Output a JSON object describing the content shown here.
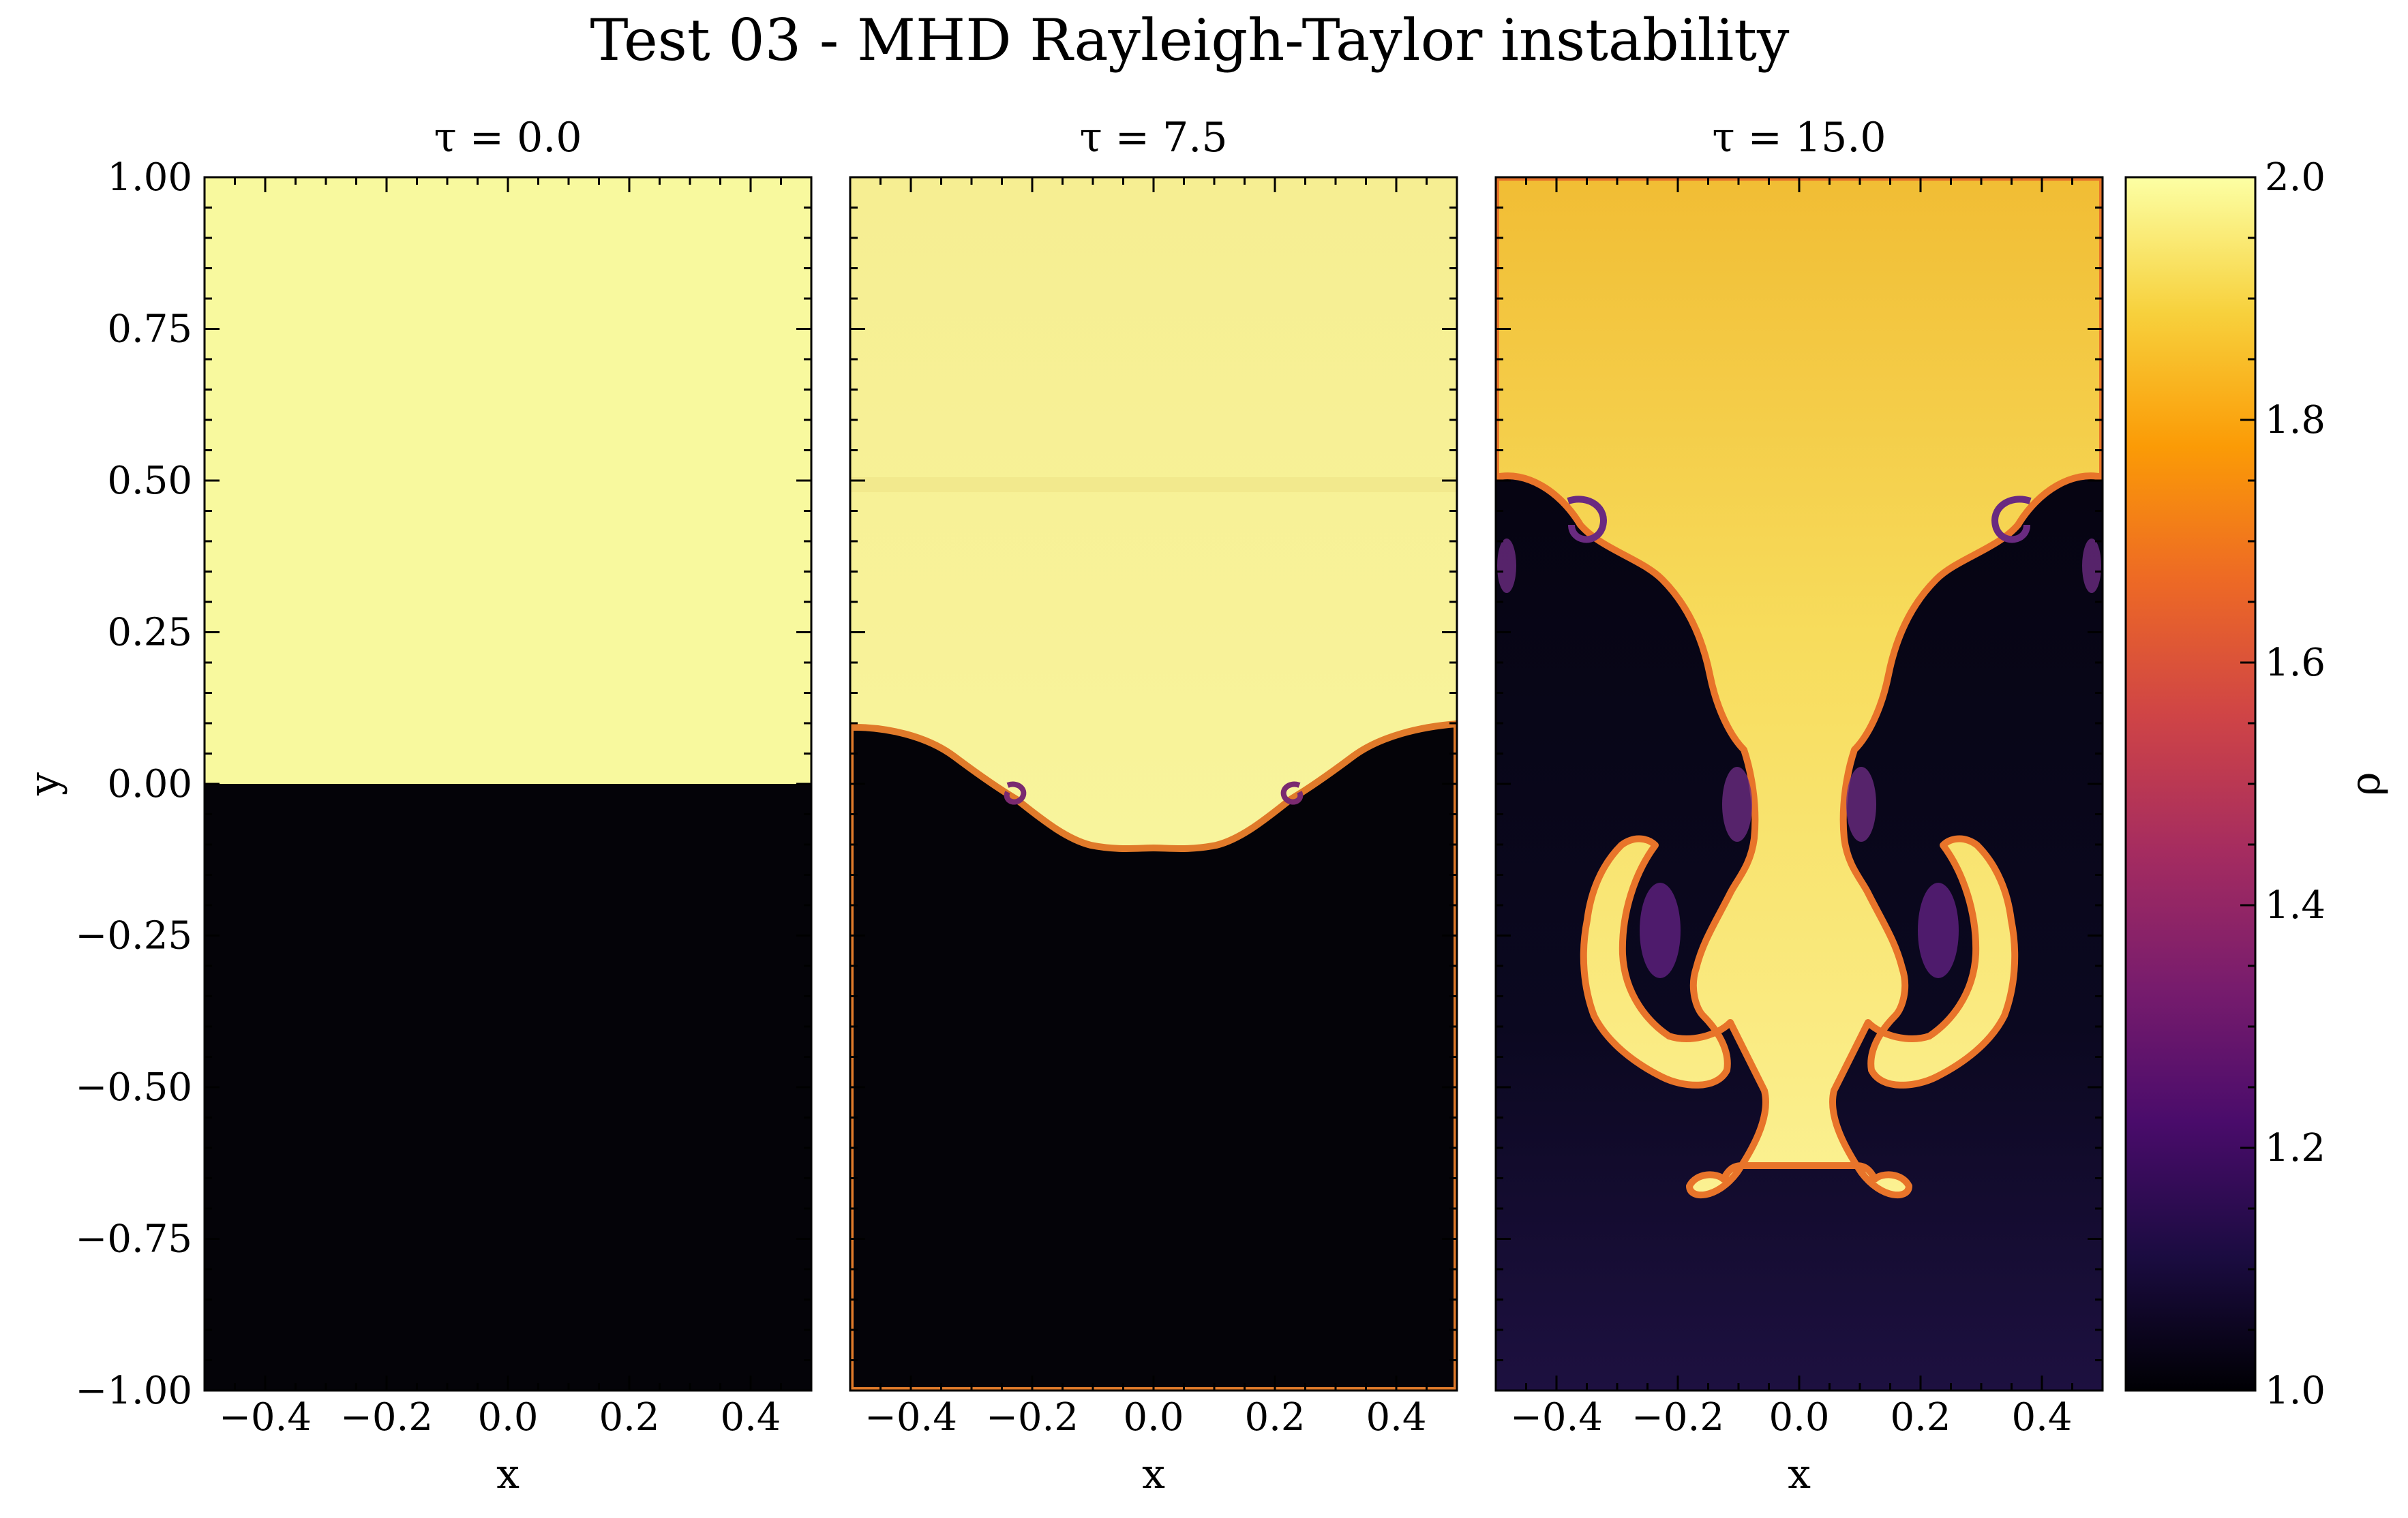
{
  "chart_data": {
    "type": "heatmap",
    "title": "Test 03 - MHD Rayleigh-Taylor instability",
    "panels": [
      {
        "title": "τ = 0.0",
        "time": 0.0
      },
      {
        "title": "τ = 7.5",
        "time": 7.5
      },
      {
        "title": "τ = 15.0",
        "time": 15.0
      }
    ],
    "xlabel": "x",
    "ylabel": "y",
    "xlim": [
      -0.5,
      0.5
    ],
    "ylim": [
      -1.0,
      1.0
    ],
    "xticks": [
      -0.4,
      -0.2,
      0.0,
      0.2,
      0.4
    ],
    "xtick_labels": [
      "−0.4",
      "−0.2",
      "0.0",
      "0.2",
      "0.4"
    ],
    "yticks": [
      1.0,
      0.75,
      0.5,
      0.25,
      0.0,
      -0.25,
      -0.5,
      -0.75,
      -1.0
    ],
    "ytick_labels": [
      "1.00",
      "0.75",
      "0.50",
      "0.25",
      "0.00",
      "−0.25",
      "−0.50",
      "−0.75",
      "−1.00"
    ],
    "colorbar": {
      "label": "ρ",
      "range": [
        1.0,
        2.0
      ],
      "ticks": [
        2.0,
        1.8,
        1.6,
        1.4,
        1.2,
        1.0
      ],
      "tick_labels": [
        "2.0",
        "1.8",
        "1.6",
        "1.4",
        "1.2",
        "1.0"
      ],
      "colormap": "inferno",
      "colors": [
        "#000004",
        "#1b0c41",
        "#4a0c6b",
        "#781c6d",
        "#a52c60",
        "#cf4446",
        "#ed6925",
        "#fb9b06",
        "#f7d13d",
        "#fcffa4"
      ]
    },
    "heavy_fluid_density": 2.0,
    "light_fluid_density": 1.0,
    "grid": false
  }
}
